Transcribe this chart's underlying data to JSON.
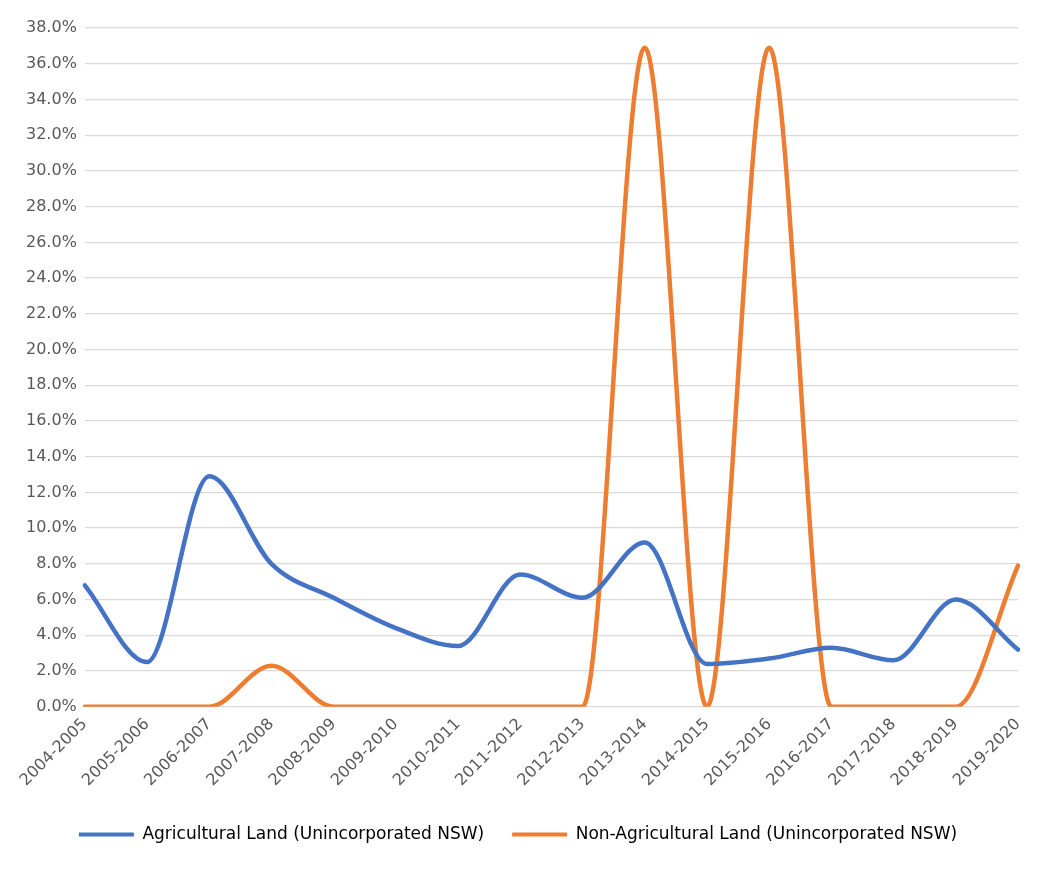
{
  "chart_data": {
    "type": "line",
    "categories": [
      "2004-2005",
      "2005-2006",
      "2006-2007",
      "2007-2008",
      "2008-2009",
      "2009-2010",
      "2010-2011",
      "2011-2012",
      "2012-2013",
      "2013-2014",
      "2014-2015",
      "2015-2016",
      "2016-2017",
      "2017-2018",
      "2018-2019",
      "2019-2020"
    ],
    "series": [
      {
        "name": "Agricultural Land (Unincorporated NSW)",
        "color": "#4472c4",
        "values": [
          6.8,
          2.5,
          12.9,
          8.0,
          6.1,
          4.4,
          3.4,
          7.4,
          6.1,
          9.2,
          2.4,
          2.7,
          3.3,
          2.6,
          6.0,
          3.2
        ]
      },
      {
        "name": "Non-Agricultural Land (Unincorporated NSW)",
        "color": "#ed7d31",
        "values": [
          0,
          0,
          0,
          2.3,
          0,
          0,
          0,
          0,
          0,
          36.9,
          0,
          36.9,
          0,
          0,
          0,
          7.9
        ]
      }
    ],
    "ylim": [
      0,
      38
    ],
    "yticks": [
      {
        "value": 0,
        "label": "0.0%"
      },
      {
        "value": 2,
        "label": "2.0%"
      },
      {
        "value": 4,
        "label": "4.0%"
      },
      {
        "value": 6,
        "label": "6.0%"
      },
      {
        "value": 8,
        "label": "8.0%"
      },
      {
        "value": 10,
        "label": "10.0%"
      },
      {
        "value": 12,
        "label": "12.0%"
      },
      {
        "value": 14,
        "label": "14.0%"
      },
      {
        "value": 16,
        "label": "16.0%"
      },
      {
        "value": 18,
        "label": "18.0%"
      },
      {
        "value": 20,
        "label": "20.0%"
      },
      {
        "value": 22,
        "label": "22.0%"
      },
      {
        "value": 24,
        "label": "24.0%"
      },
      {
        "value": 26,
        "label": "26.0%"
      },
      {
        "value": 28,
        "label": "28.0%"
      },
      {
        "value": 30,
        "label": "30.0%"
      },
      {
        "value": 32,
        "label": "32.0%"
      },
      {
        "value": 34,
        "label": "34.0%"
      },
      {
        "value": 36,
        "label": "36.0%"
      },
      {
        "value": 38,
        "label": "38.0%"
      }
    ],
    "grid": "y",
    "legend": "bottom",
    "marker": "none",
    "line_style": "solid"
  }
}
